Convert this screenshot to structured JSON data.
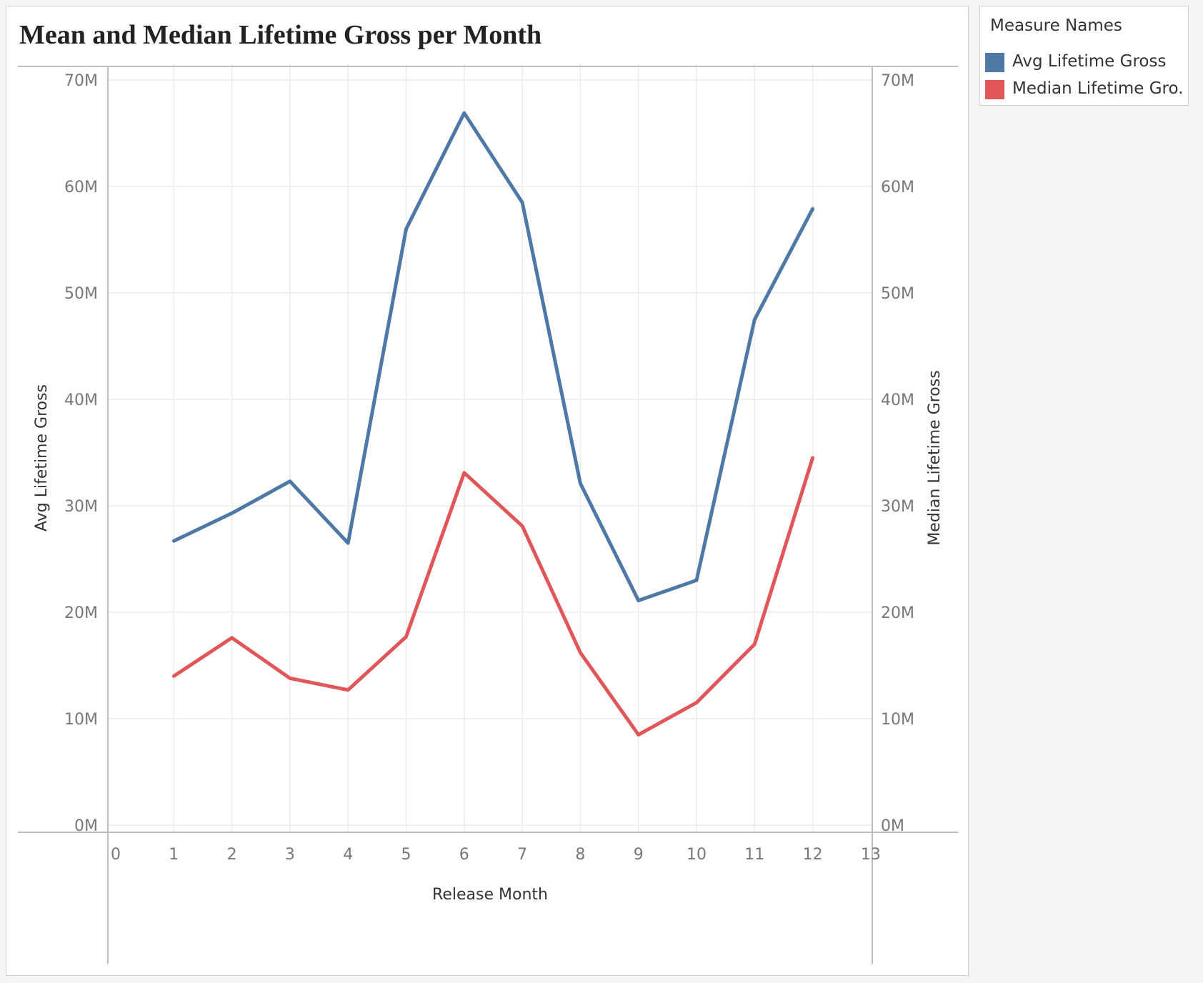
{
  "legend": {
    "title": "Measure Names",
    "items": [
      {
        "label": "Avg Lifetime Gross",
        "color": "#4e79a7"
      },
      {
        "label": "Median Lifetime Gro..",
        "color": "#e15759"
      }
    ]
  },
  "chart_data": {
    "type": "line",
    "title": "Mean and Median Lifetime Gross per Month",
    "xlabel": "Release Month",
    "ylabel": "Avg Lifetime Gross",
    "ylabel_right": "Median Lifetime Gross",
    "x": [
      1,
      2,
      3,
      4,
      5,
      6,
      7,
      8,
      9,
      10,
      11,
      12
    ],
    "xlim": [
      0,
      13
    ],
    "ylim": [
      0,
      70000000
    ],
    "x_ticks": [
      "0",
      "1",
      "2",
      "3",
      "4",
      "5",
      "6",
      "7",
      "8",
      "9",
      "10",
      "11",
      "12",
      "13"
    ],
    "y_ticks": [
      "0M",
      "10M",
      "20M",
      "30M",
      "40M",
      "50M",
      "60M",
      "70M"
    ],
    "y2_ticks": [
      "0M",
      "10M",
      "20M",
      "30M",
      "40M",
      "50M",
      "60M",
      "70M"
    ],
    "grid": true,
    "legend_position": "right",
    "series": [
      {
        "name": "Avg Lifetime Gross",
        "color": "#4e79a7",
        "axis": "left",
        "values": [
          26700000,
          29300000,
          32300000,
          26500000,
          56000000,
          66900000,
          58500000,
          32100000,
          21100000,
          23000000,
          47500000,
          57900000
        ]
      },
      {
        "name": "Median Lifetime Gross",
        "color": "#e15759",
        "axis": "right",
        "values": [
          14000000,
          17600000,
          13800000,
          12700000,
          17700000,
          33100000,
          28100000,
          16200000,
          8500000,
          11500000,
          17000000,
          34500000
        ]
      }
    ]
  }
}
